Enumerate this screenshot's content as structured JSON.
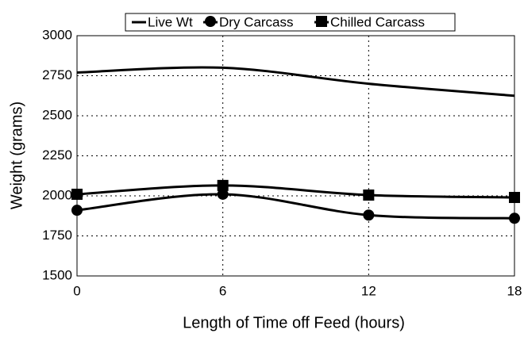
{
  "chart_data": {
    "type": "line",
    "x_label": "Length of Time off Feed (hours)",
    "y_label": "Weight (grams)",
    "x": [
      0,
      6,
      12,
      18
    ],
    "series": [
      {
        "name": "Live Wt",
        "color": "#000000",
        "marker": "none",
        "values": [
          2770,
          2800,
          2700,
          2625
        ]
      },
      {
        "name": "Dry Carcass",
        "color": "#000000",
        "marker": "circle",
        "values": [
          1910,
          2010,
          1880,
          1860
        ]
      },
      {
        "name": "Chilled Carcass",
        "color": "#000000",
        "marker": "square",
        "values": [
          2010,
          2065,
          2005,
          1990
        ]
      }
    ],
    "xlim": [
      0,
      18
    ],
    "xticks": [
      0,
      6,
      12,
      18
    ],
    "ylim": [
      1500,
      3000
    ],
    "yticks": [
      1500,
      1750,
      2000,
      2250,
      2500,
      2750,
      3000
    ],
    "grid": true,
    "smooth": true,
    "legend": "top"
  }
}
